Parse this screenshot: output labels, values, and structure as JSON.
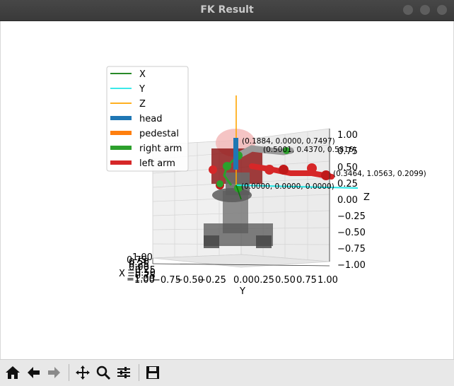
{
  "window": {
    "title": "FK Result"
  },
  "legend": [
    {
      "label": "X",
      "color": "#0a7a0a",
      "kind": "line"
    },
    {
      "label": "Y",
      "color": "#21e6e6",
      "kind": "line"
    },
    {
      "label": "Z",
      "color": "#ffa500",
      "kind": "line"
    },
    {
      "label": "head",
      "color": "#1f77b4",
      "kind": "bar"
    },
    {
      "label": "pedestal",
      "color": "#ff7f0e",
      "kind": "bar"
    },
    {
      "label": "right arm",
      "color": "#2ca02c",
      "kind": "bar"
    },
    {
      "label": "left arm",
      "color": "#d62728",
      "kind": "bar"
    }
  ],
  "points": [
    "(0.1884, 0.0000, 0.7497)",
    "(0.5001, 0.4370, 0.5816)",
    "(0.3464, 1.0563, 0.2099)",
    "(0.0000, 0.0000, 0.0000)"
  ],
  "axes": {
    "z_label": "Z",
    "y_label": "Y",
    "x_label": "X",
    "z_ticks": [
      "1.00",
      "0.75",
      "0.50",
      "0.25",
      "0.00",
      "−0.25",
      "−0.50",
      "−0.75",
      "−1.00"
    ],
    "y_ticks": [
      "−1.00",
      "−0.75",
      "−0.50",
      "−0.25",
      "0.00",
      "0.25",
      "0.50",
      "0.75",
      "1.00"
    ],
    "x_ticks": [
      "1.00",
      "0.75",
      "0.50",
      "0.25",
      "0.00",
      "−0.25",
      "−0.50",
      "−0.75",
      "−1.00"
    ]
  },
  "toolbar": [
    {
      "name": "home-icon",
      "glyph": "⌂"
    },
    {
      "name": "back-icon",
      "glyph": "⬅"
    },
    {
      "name": "forward-icon",
      "glyph": "➡"
    },
    {
      "name": "pan-icon",
      "glyph": "✥"
    },
    {
      "name": "zoom-icon",
      "glyph": "🔍"
    },
    {
      "name": "configure-subplots-icon",
      "glyph": "☷"
    },
    {
      "name": "save-icon",
      "glyph": "💾"
    }
  ]
}
